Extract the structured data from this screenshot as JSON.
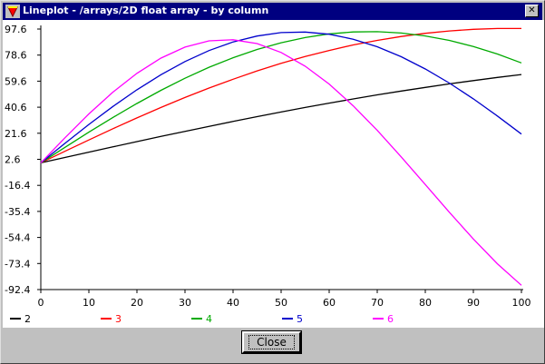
{
  "window": {
    "title": "Lineplot - /arrays/2D float array - by column",
    "icon": "red-triangle-icon",
    "close_glyph": "✕"
  },
  "buttons": {
    "close_label": "Close"
  },
  "colors": {
    "titlebar": "#000080",
    "plot_background": "#ffffff",
    "face": "#c0c0c0"
  },
  "chart_data": {
    "type": "line",
    "title": "",
    "xlabel": "",
    "ylabel": "",
    "xlim": [
      0,
      100
    ],
    "ylim": [
      -92.4,
      97.6
    ],
    "grid": false,
    "legend_position": "bottom",
    "x_ticks": [
      0,
      10,
      20,
      30,
      40,
      50,
      60,
      70,
      80,
      90,
      100
    ],
    "x_tick_labels": [
      "0",
      "10",
      "20",
      "30",
      "40",
      "50",
      "60",
      "70",
      "80",
      "90",
      "100"
    ],
    "y_ticks": [
      97.6,
      78.6,
      59.6,
      40.6,
      21.6,
      2.6,
      -16.4,
      -35.4,
      -54.4,
      -73.4,
      -92.4
    ],
    "y_tick_labels": [
      "97.6",
      "78.6",
      "59.6",
      "40.6",
      "21.6",
      "2.6",
      "-16.4",
      "-35.4",
      "-54.4",
      "-73.4",
      "-92.4"
    ],
    "x": [
      0,
      5,
      10,
      15,
      20,
      25,
      30,
      35,
      40,
      45,
      50,
      55,
      60,
      65,
      70,
      75,
      80,
      85,
      90,
      95,
      100
    ],
    "series": [
      {
        "name": "2",
        "color": "#000000",
        "values": [
          0,
          3.9,
          7.8,
          11.7,
          15.5,
          19.3,
          23.0,
          26.6,
          30.2,
          33.7,
          37.1,
          40.4,
          43.6,
          46.6,
          49.6,
          52.4,
          55.0,
          57.6,
          60.0,
          62.3,
          64.4
        ]
      },
      {
        "name": "3",
        "color": "#ff0000",
        "values": [
          0,
          8.4,
          16.7,
          24.9,
          32.8,
          40.4,
          47.7,
          54.6,
          61.0,
          67.1,
          72.6,
          77.6,
          82.0,
          86.0,
          89.3,
          92.2,
          94.5,
          96.2,
          97.4,
          98.0,
          98.0
        ]
      },
      {
        "name": "4",
        "color": "#00aa00",
        "values": [
          0,
          11.3,
          22.4,
          33.1,
          43.3,
          52.9,
          61.7,
          69.7,
          76.7,
          82.7,
          87.6,
          91.4,
          94.1,
          95.5,
          95.7,
          94.7,
          92.6,
          89.3,
          84.9,
          79.4,
          72.9
        ]
      },
      {
        "name": "5",
        "color": "#0000cc",
        "values": [
          0,
          14.2,
          28.0,
          41.1,
          53.3,
          64.3,
          73.9,
          81.9,
          88.2,
          92.5,
          95.0,
          95.4,
          93.8,
          90.2,
          84.7,
          77.4,
          68.5,
          58.2,
          46.7,
          34.2,
          21.0
        ]
      },
      {
        "name": "6",
        "color": "#ff00ff",
        "values": [
          0,
          18.2,
          35.7,
          51.6,
          65.3,
          76.4,
          84.4,
          89.0,
          89.8,
          87.0,
          80.5,
          70.5,
          57.5,
          41.6,
          23.7,
          4.3,
          -15.8,
          -36.0,
          -55.5,
          -73.6,
          -89.3
        ]
      }
    ]
  }
}
